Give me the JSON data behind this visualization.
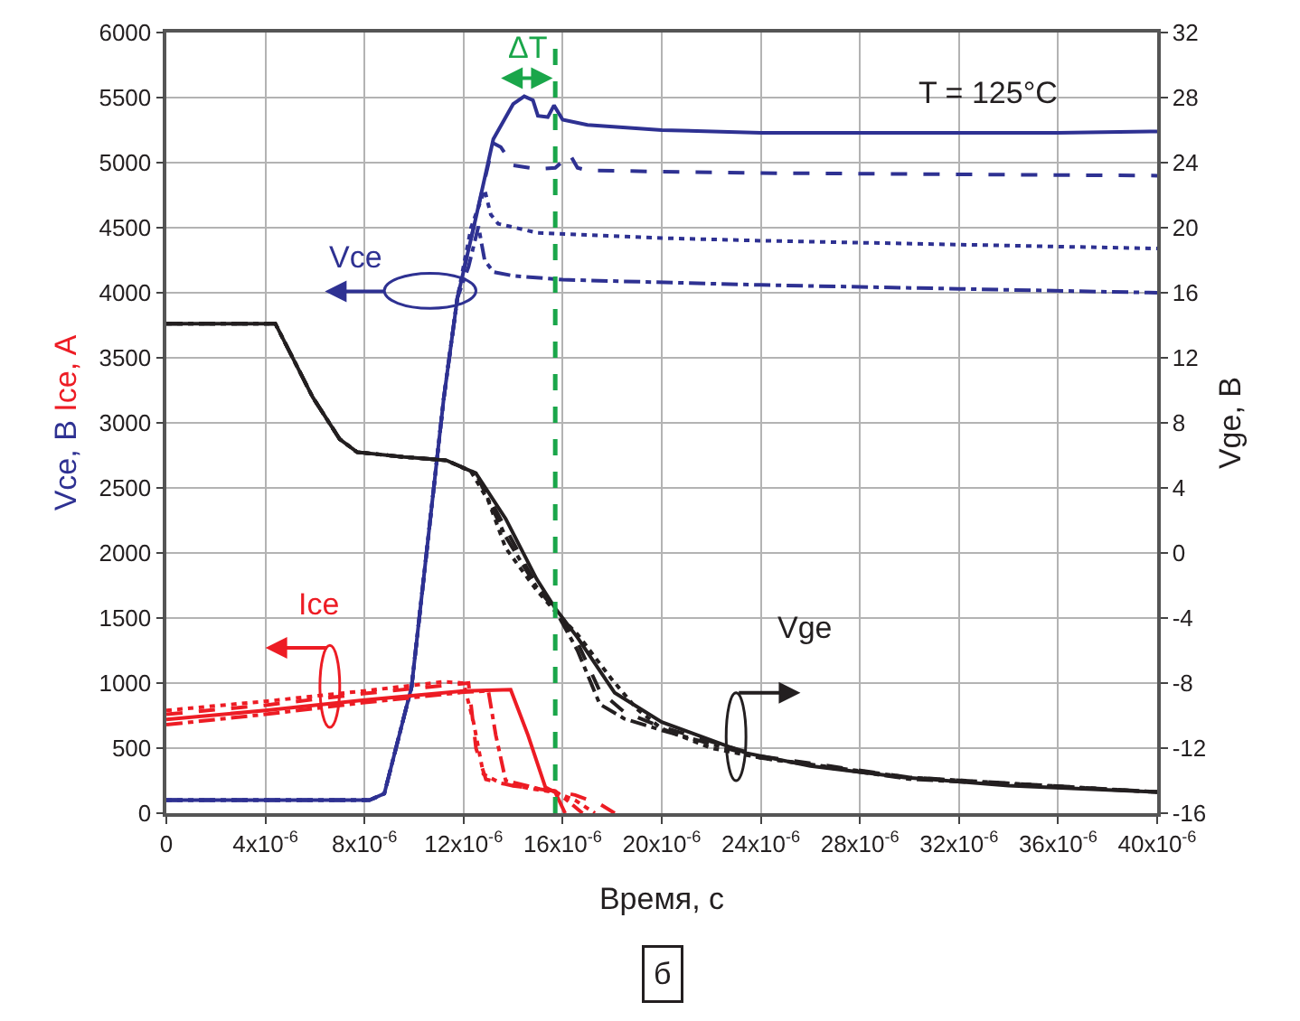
{
  "chart_data": {
    "type": "line",
    "xlabel": "Время, с",
    "ylabel": "Vce, B Ice, A",
    "y2label": "Vge, B",
    "xlim": [
      0,
      4e-05
    ],
    "xticks": [
      0,
      {
        "value": 4e-06,
        "label": "4x10$^{-6}$"
      },
      {
        "value": 8e-06,
        "label": "8x10$^{-6}$"
      },
      {
        "value": 1.2e-05,
        "label": "12x10$^{-6}$"
      },
      {
        "value": 1.6e-05,
        "label": "16x10$^{-6}$"
      },
      {
        "value": 2e-05,
        "label": "20x10$^{-6}$"
      },
      {
        "value": 2.4e-05,
        "label": "24x10$^{-6}$"
      },
      {
        "value": 2.8e-05,
        "label": "28x10$^{-6}$"
      },
      {
        "value": 3.2e-05,
        "label": "32x10$^{-6}$"
      },
      {
        "value": 3.6e-05,
        "label": "36x10$^{-6}$"
      },
      {
        "value": 4e-05,
        "label": "40x10$^{-6}$"
      }
    ],
    "ylim": [
      0,
      6000
    ],
    "yticks": [
      0,
      500,
      1000,
      1500,
      2000,
      2500,
      3000,
      3500,
      4000,
      4500,
      5000,
      5500,
      6000
    ],
    "y2lim": [
      -16,
      32
    ],
    "y2ticks": [
      -16,
      -12,
      -8,
      -4,
      0,
      4,
      8,
      12,
      16,
      20,
      24,
      28,
      32
    ],
    "grid": true,
    "marker": "none",
    "series": [
      {
        "color": "#2e3192",
        "line_style": "solid",
        "x": [
          0,
          8.2e-06,
          8.8e-06,
          9.9e-06,
          1.12e-05,
          1.175e-05,
          1.25e-05,
          1.32e-05,
          1.4e-05,
          1.445e-05,
          1.48e-05,
          1.5e-05,
          1.54e-05,
          1.565e-05,
          1.6e-05,
          1.7e-05,
          2e-05,
          2.4e-05,
          3e-05,
          3.6e-05,
          4e-05
        ],
        "values": [
          100,
          100,
          150,
          970,
          3190,
          3960,
          4580,
          5180,
          5450,
          5510,
          5480,
          5360,
          5350,
          5440,
          5330,
          5290,
          5250,
          5230,
          5230,
          5230,
          5240
        ]
      },
      {
        "color": "#2e3192",
        "line_style": "dashed",
        "x": [
          0,
          8.2e-06,
          8.8e-06,
          9.9e-06,
          1.12e-05,
          1.175e-05,
          1.25e-05,
          1.32e-05,
          1.35e-05,
          1.4e-05,
          1.5e-05,
          1.57e-05,
          1.63e-05,
          1.66e-05,
          1.7e-05,
          2.4e-05,
          3.2e-05,
          4e-05
        ],
        "values": [
          100,
          100,
          150,
          970,
          3190,
          3960,
          4580,
          5150,
          5120,
          4980,
          4950,
          4960,
          5060,
          4960,
          4940,
          4920,
          4910,
          4900
        ]
      },
      {
        "color": "#2e3192",
        "line_style": "dotted",
        "x": [
          0,
          8.2e-06,
          8.8e-06,
          9.9e-06,
          1.12e-05,
          1.175e-05,
          1.23e-05,
          1.285e-05,
          1.31e-05,
          1.34e-05,
          1.5e-05,
          2e-05,
          2.4e-05,
          3.2e-05,
          4e-05
        ],
        "values": [
          100,
          100,
          150,
          970,
          3190,
          3960,
          4500,
          4790,
          4600,
          4530,
          4460,
          4420,
          4400,
          4370,
          4340
        ]
      },
      {
        "color": "#2e3192",
        "line_style": "dashdot",
        "x": [
          0,
          8.2e-06,
          8.8e-06,
          9.9e-06,
          1.12e-05,
          1.175e-05,
          1.22e-05,
          1.26e-05,
          1.285e-05,
          1.32e-05,
          1.4e-05,
          1.6e-05,
          2.4e-05,
          3.2e-05,
          4e-05
        ],
        "values": [
          100,
          100,
          150,
          970,
          3190,
          3960,
          4200,
          4510,
          4250,
          4160,
          4130,
          4100,
          4060,
          4030,
          4000
        ]
      },
      {
        "color": "#ed1c24",
        "line_style": "solid",
        "x": [
          0,
          4e-06,
          8e-06,
          1.2e-05,
          1.39e-05,
          1.46e-05,
          1.53e-05,
          1.57e-05,
          1.61e-05
        ],
        "values": [
          720,
          790,
          870,
          940,
          950,
          600,
          200,
          160,
          0
        ]
      },
      {
        "color": "#ed1c24",
        "line_style": "dashed",
        "x": [
          0,
          4e-06,
          8e-06,
          1.22e-05,
          1.25e-05,
          1.29e-05,
          1.4e-05,
          1.57e-05,
          1.65e-05,
          1.75e-05,
          1.81e-05
        ],
        "values": [
          760,
          830,
          920,
          1000,
          500,
          260,
          210,
          170,
          140,
          70,
          0
        ]
      },
      {
        "color": "#ed1c24",
        "line_style": "dotted",
        "x": [
          0,
          4e-06,
          8e-06,
          1.12e-05,
          1.2e-05,
          1.24e-05,
          1.28e-05,
          1.35e-05,
          1.5e-05,
          1.57e-05,
          1.65e-05,
          1.73e-05
        ],
        "values": [
          790,
          860,
          940,
          1010,
          1000,
          700,
          300,
          230,
          180,
          160,
          100,
          0
        ]
      },
      {
        "color": "#ed1c24",
        "line_style": "dashdot",
        "x": [
          0,
          4e-06,
          8e-06,
          1.2e-05,
          1.3e-05,
          1.33e-05,
          1.37e-05,
          1.5e-05,
          1.57e-05,
          1.63e-05,
          1.68e-05
        ],
        "values": [
          680,
          760,
          850,
          930,
          940,
          600,
          250,
          190,
          170,
          80,
          0
        ]
      },
      {
        "color": "#231f20",
        "line_style": "solid",
        "axis": "y2",
        "x": [
          0,
          4.4e-06,
          5.9e-06,
          7e-06,
          7.7e-06,
          9.6e-06,
          1.13e-05,
          1.25e-05,
          1.37e-05,
          1.495e-05,
          1.57e-05,
          1.66e-05,
          1.81e-05,
          2e-05,
          2.34e-05,
          2.6e-05,
          2.98e-05,
          3.4e-05,
          4e-05
        ],
        "values": [
          14.1,
          14.1,
          9.6,
          7.0,
          6.2,
          5.9,
          5.7,
          4.9,
          2.1,
          -1.6,
          -3.4,
          -5.2,
          -8.6,
          -10.4,
          -12.3,
          -13.1,
          -13.8,
          -14.3,
          -14.7
        ]
      },
      {
        "color": "#231f20",
        "line_style": "dotted",
        "axis": "y2",
        "x": [
          0,
          4.4e-06,
          5.9e-06,
          7e-06,
          7.7e-06,
          9.6e-06,
          1.13e-05,
          1.23e-05,
          1.3e-05,
          1.37e-05,
          1.495e-05,
          1.57e-05,
          1.66e-05,
          1.8e-05,
          1.9e-05,
          2e-05,
          2.2e-05,
          2.4e-05,
          3e-05,
          4e-05
        ],
        "values": [
          14.1,
          14.1,
          9.6,
          7.0,
          6.2,
          5.9,
          5.7,
          5.0,
          3.2,
          0.3,
          -2.3,
          -3.6,
          -5.0,
          -7.8,
          -9.6,
          -10.8,
          -12.0,
          -12.6,
          -13.8,
          -14.7
        ]
      },
      {
        "color": "#231f20",
        "line_style": "dashed",
        "axis": "y2",
        "x": [
          0,
          4.4e-06,
          5.9e-06,
          7e-06,
          7.7e-06,
          9.6e-06,
          1.13e-05,
          1.25e-05,
          1.37e-05,
          1.495e-05,
          1.57e-05,
          1.66e-05,
          1.75e-05,
          1.85e-05,
          2e-05,
          2.4e-05,
          3e-05,
          4e-05
        ],
        "values": [
          14.1,
          14.1,
          9.6,
          7.0,
          6.2,
          5.9,
          5.7,
          4.9,
          1.5,
          -2.0,
          -3.5,
          -5.5,
          -8.5,
          -9.8,
          -10.7,
          -12.5,
          -13.8,
          -14.7
        ]
      },
      {
        "color": "#231f20",
        "line_style": "dashdot",
        "axis": "y2",
        "x": [
          0,
          4.4e-06,
          5.9e-06,
          7e-06,
          7.7e-06,
          9.6e-06,
          1.13e-05,
          1.25e-05,
          1.37e-05,
          1.495e-05,
          1.57e-05,
          1.66e-05,
          1.75e-05,
          1.85e-05,
          2e-05,
          2.4e-05,
          3e-05,
          4e-05
        ],
        "values": [
          14.1,
          14.1,
          9.6,
          7.0,
          6.2,
          5.9,
          5.7,
          4.9,
          1.0,
          -2.1,
          -3.5,
          -6.0,
          -9.3,
          -10.2,
          -10.9,
          -12.6,
          -13.9,
          -14.7
        ]
      }
    ],
    "ref_lines": [
      {
        "axis": "x",
        "value": 1.57e-05,
        "color": "#1aa64a",
        "line_style": "dashed"
      }
    ],
    "annotations": [
      "ΔT",
      "T = 125°C",
      "Vce",
      "Ice",
      "Vge",
      "б"
    ]
  }
}
